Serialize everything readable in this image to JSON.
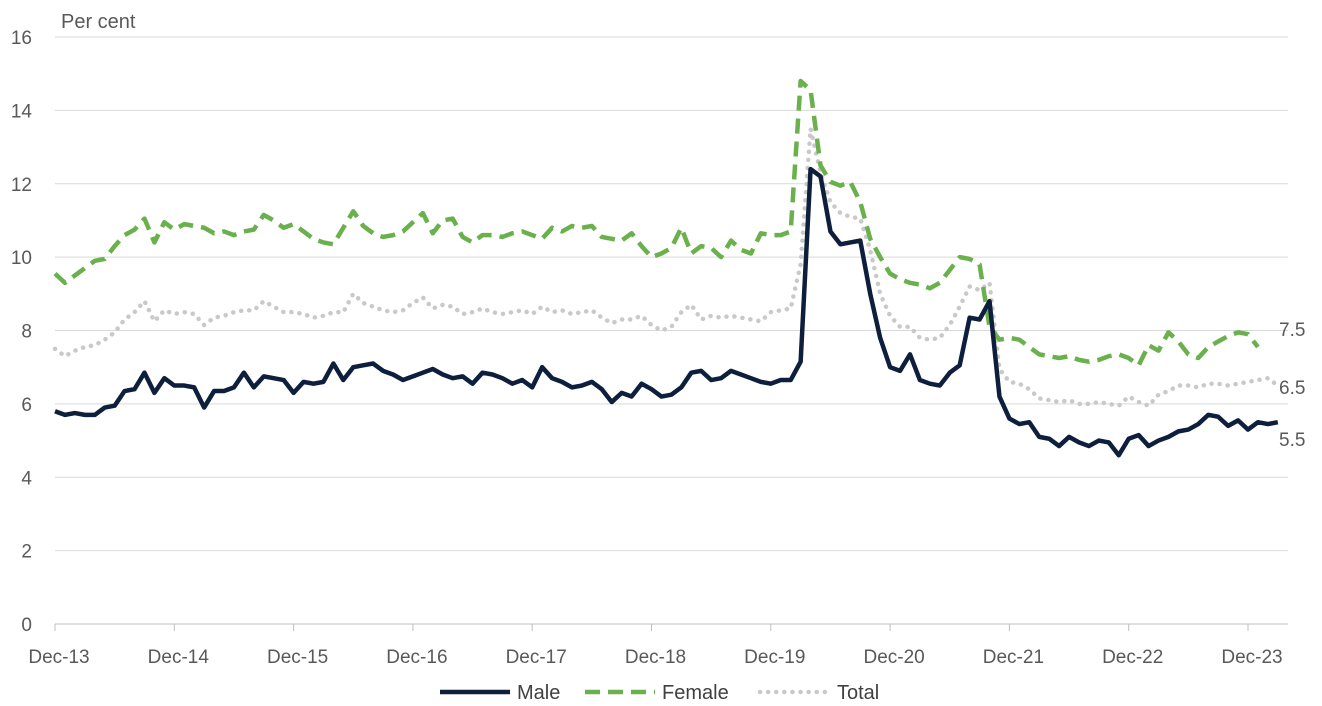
{
  "chart_data": {
    "type": "line",
    "ylabel": "Per cent",
    "ylim": [
      0,
      16
    ],
    "yticks": [
      0,
      2,
      4,
      6,
      8,
      10,
      12,
      14,
      16
    ],
    "xlabels": [
      "Dec-13",
      "Dec-14",
      "Dec-15",
      "Dec-16",
      "Dec-17",
      "Dec-18",
      "Dec-19",
      "Dec-20",
      "Dec-21",
      "Dec-22",
      "Dec-23"
    ],
    "x_start": "Dec-13",
    "x_end": "Apr-24",
    "grid": "horizontal",
    "legend_position": "bottom",
    "series": [
      {
        "name": "Male",
        "color": "#0d1f3c",
        "style": "solid",
        "end_label": "5.5",
        "values": [
          5.8,
          5.7,
          5.75,
          5.7,
          5.7,
          5.9,
          5.95,
          6.35,
          6.4,
          6.85,
          6.3,
          6.7,
          6.5,
          6.5,
          6.45,
          5.9,
          6.35,
          6.35,
          6.45,
          6.85,
          6.45,
          6.75,
          6.7,
          6.65,
          6.3,
          6.6,
          6.55,
          6.6,
          7.1,
          6.65,
          7.0,
          7.05,
          7.1,
          6.9,
          6.8,
          6.65,
          6.75,
          6.85,
          6.95,
          6.8,
          6.7,
          6.75,
          6.55,
          6.85,
          6.8,
          6.7,
          6.55,
          6.65,
          6.45,
          7.0,
          6.7,
          6.6,
          6.45,
          6.5,
          6.6,
          6.4,
          6.05,
          6.3,
          6.2,
          6.55,
          6.4,
          6.2,
          6.25,
          6.45,
          6.85,
          6.9,
          6.65,
          6.7,
          6.9,
          6.8,
          6.7,
          6.6,
          6.55,
          6.65,
          6.65,
          7.15,
          12.4,
          12.2,
          10.7,
          10.35,
          10.4,
          10.45,
          9.0,
          7.8,
          7.0,
          6.9,
          7.35,
          6.65,
          6.55,
          6.5,
          6.85,
          7.05,
          8.35,
          8.3,
          8.8,
          6.2,
          5.6,
          5.45,
          5.5,
          5.1,
          5.05,
          4.85,
          5.1,
          4.95,
          4.85,
          5.0,
          4.95,
          4.6,
          5.05,
          5.15,
          4.85,
          5.0,
          5.1,
          5.25,
          5.3,
          5.45,
          5.7,
          5.65,
          5.4,
          5.55,
          5.3,
          5.5,
          5.45,
          5.5
        ]
      },
      {
        "name": "Female",
        "color": "#6ab04c",
        "style": "dashed",
        "end_label": "7.5",
        "values": [
          9.55,
          9.3,
          9.5,
          9.7,
          9.9,
          9.95,
          10.3,
          10.6,
          10.75,
          11.05,
          10.4,
          10.95,
          10.75,
          10.9,
          10.85,
          10.8,
          10.65,
          10.7,
          10.6,
          10.7,
          10.75,
          11.15,
          11.0,
          10.8,
          10.9,
          10.7,
          10.5,
          10.4,
          10.35,
          10.8,
          11.25,
          10.85,
          10.65,
          10.55,
          10.6,
          10.7,
          10.95,
          11.2,
          10.65,
          11.0,
          11.05,
          10.55,
          10.4,
          10.6,
          10.6,
          10.55,
          10.65,
          10.7,
          10.6,
          10.5,
          10.8,
          10.7,
          10.85,
          10.8,
          10.85,
          10.55,
          10.5,
          10.45,
          10.65,
          10.3,
          10.0,
          10.1,
          10.25,
          10.8,
          10.1,
          10.3,
          10.25,
          10.0,
          10.45,
          10.2,
          10.1,
          10.65,
          10.6,
          10.6,
          10.7,
          14.8,
          14.55,
          12.5,
          12.05,
          11.95,
          12.05,
          11.5,
          10.5,
          10.0,
          9.55,
          9.4,
          9.3,
          9.25,
          9.15,
          9.3,
          9.65,
          10.0,
          9.95,
          9.8,
          8.1,
          7.75,
          7.8,
          7.75,
          7.55,
          7.35,
          7.3,
          7.25,
          7.3,
          7.2,
          7.15,
          7.2,
          7.3,
          7.35,
          7.25,
          7.05,
          7.6,
          7.45,
          7.95,
          7.7,
          7.35,
          7.25,
          7.55,
          7.7,
          7.85,
          7.95,
          7.9,
          7.55
        ]
      },
      {
        "name": "Total",
        "color": "#c9c9c9",
        "style": "dotted",
        "end_label": "6.5",
        "values": [
          7.5,
          7.3,
          7.45,
          7.55,
          7.6,
          7.75,
          7.95,
          8.3,
          8.5,
          8.8,
          8.25,
          8.55,
          8.45,
          8.5,
          8.45,
          8.15,
          8.35,
          8.4,
          8.5,
          8.55,
          8.55,
          8.8,
          8.65,
          8.5,
          8.5,
          8.45,
          8.35,
          8.4,
          8.5,
          8.5,
          9.0,
          8.75,
          8.65,
          8.55,
          8.5,
          8.55,
          8.75,
          8.9,
          8.6,
          8.7,
          8.65,
          8.45,
          8.5,
          8.6,
          8.5,
          8.45,
          8.5,
          8.55,
          8.45,
          8.65,
          8.5,
          8.55,
          8.45,
          8.5,
          8.55,
          8.35,
          8.2,
          8.3,
          8.3,
          8.4,
          8.15,
          8.0,
          8.1,
          8.5,
          8.7,
          8.3,
          8.4,
          8.35,
          8.4,
          8.35,
          8.3,
          8.25,
          8.5,
          8.55,
          8.6,
          9.8,
          13.5,
          12.3,
          11.5,
          11.2,
          11.1,
          11.05,
          10.2,
          9.0,
          8.4,
          8.1,
          8.1,
          7.8,
          7.75,
          7.8,
          8.15,
          8.65,
          9.2,
          9.1,
          9.3,
          6.95,
          6.6,
          6.55,
          6.4,
          6.15,
          6.1,
          6.05,
          6.1,
          6.0,
          6.0,
          6.05,
          6.0,
          5.95,
          6.2,
          6.05,
          5.95,
          6.25,
          6.35,
          6.5,
          6.5,
          6.45,
          6.55,
          6.55,
          6.5,
          6.55,
          6.6,
          6.65,
          6.7,
          6.5
        ]
      }
    ]
  }
}
